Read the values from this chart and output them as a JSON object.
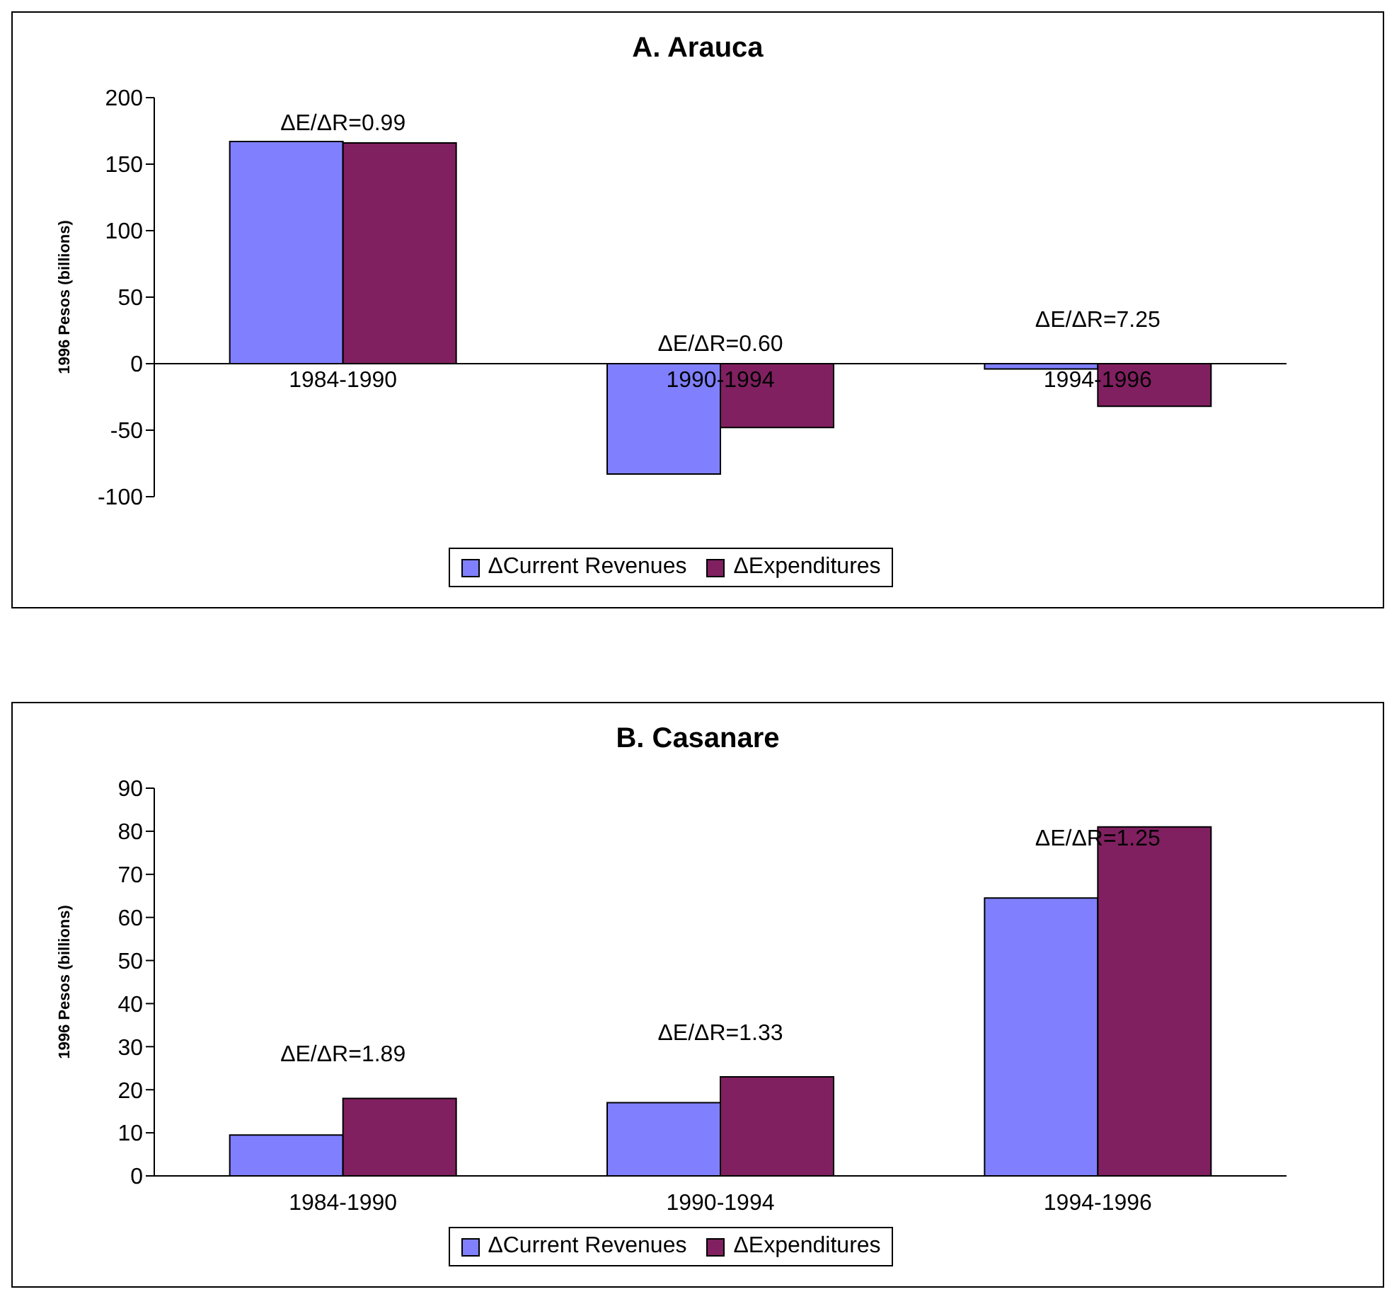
{
  "chart_data": [
    {
      "type": "bar",
      "title": "A. Arauca",
      "ylabel": "1996 Pesos (billions)",
      "categories": [
        "1984-1990",
        "1990-1994",
        "1994-1996"
      ],
      "series": [
        {
          "name": "ΔCurrent Revenues",
          "color": "#8080ff",
          "values": [
            167,
            -83,
            -4
          ]
        },
        {
          "name": "ΔExpenditures",
          "color": "#802060",
          "values": [
            166,
            -48,
            -32
          ]
        }
      ],
      "ylim": [
        -100,
        200
      ],
      "yticks": [
        -100,
        -50,
        0,
        50,
        100,
        150,
        200
      ],
      "grid": false,
      "legend": "bottom",
      "annotations": [
        {
          "text": "ΔE/ΔR=0.99",
          "x": "1984-1990",
          "y": 170
        },
        {
          "text": "ΔE/ΔR=0.60",
          "x": "1990-1994",
          "y": 4
        },
        "ΔE/ΔR=7.25"
      ]
    },
    {
      "type": "bar",
      "title": "B. Casanare",
      "ylabel": "1996 Pesos (billions)",
      "categories": [
        "1984-1990",
        "1990-1994",
        "1994-1996"
      ],
      "series": [
        {
          "name": "ΔCurrent Revenues",
          "color": "#8080ff",
          "values": [
            9.5,
            17,
            64.5
          ]
        },
        {
          "name": "ΔExpenditures",
          "color": "#802060",
          "values": [
            18,
            23,
            81
          ]
        }
      ],
      "ylim": [
        0,
        90
      ],
      "yticks": [
        0,
        10,
        20,
        30,
        40,
        50,
        60,
        70,
        80,
        90
      ],
      "grid": false,
      "legend": "bottom",
      "annotations": [
        "ΔE/ΔR=1.89",
        "ΔE/ΔR=1.33",
        {
          "text": "ΔE/ΔR=1.25",
          "x": "1994-1996",
          "y": 75
        }
      ]
    }
  ]
}
